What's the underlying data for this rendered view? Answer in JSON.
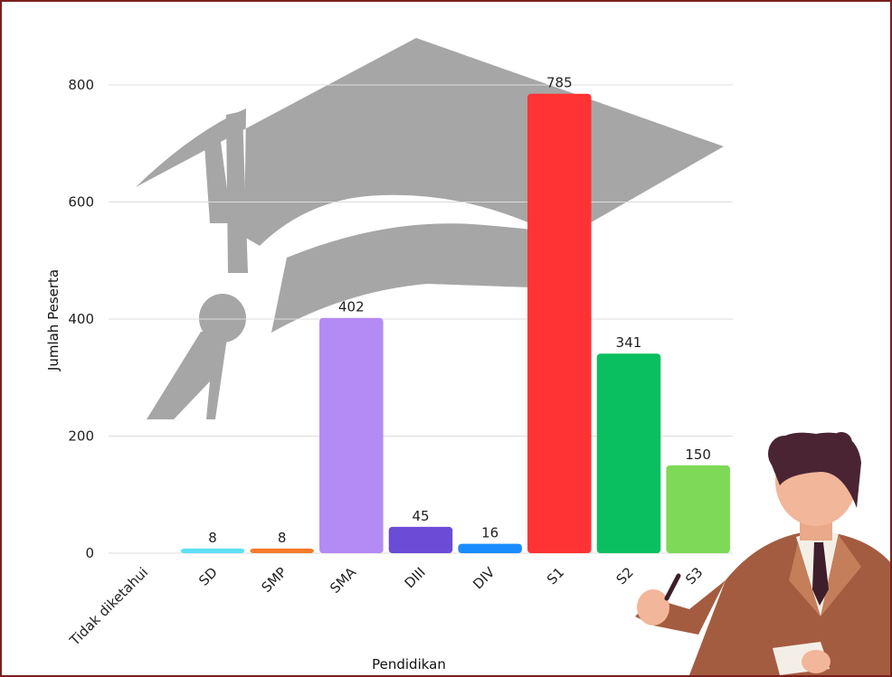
{
  "chart_data": {
    "type": "bar",
    "categories": [
      "Tidak diketahui",
      "SD",
      "SMP",
      "SMA",
      "DIII",
      "DIV",
      "S1",
      "S2",
      "S3"
    ],
    "values": [
      0,
      8,
      8,
      402,
      45,
      16,
      785,
      341,
      150
    ],
    "value_labels": [
      "",
      "8",
      "8",
      "402",
      "45",
      "16",
      "785",
      "341",
      "150"
    ],
    "colors": [
      "#cccccc",
      "#5de0f5",
      "#f57a2a",
      "#b48af5",
      "#6b4cd6",
      "#1a8cff",
      "#ff3333",
      "#0abf5f",
      "#7ed957"
    ],
    "xlabel": "Pendidikan",
    "ylabel": "Jumlah Peserta",
    "yticks": [
      0,
      200,
      400,
      600,
      800
    ],
    "ylim": [
      0,
      800
    ],
    "grid": true,
    "legend": "none"
  },
  "decorations": {
    "background_icon": "graduation-cap-icon",
    "illustration": "teacher-presenting-illustration"
  }
}
